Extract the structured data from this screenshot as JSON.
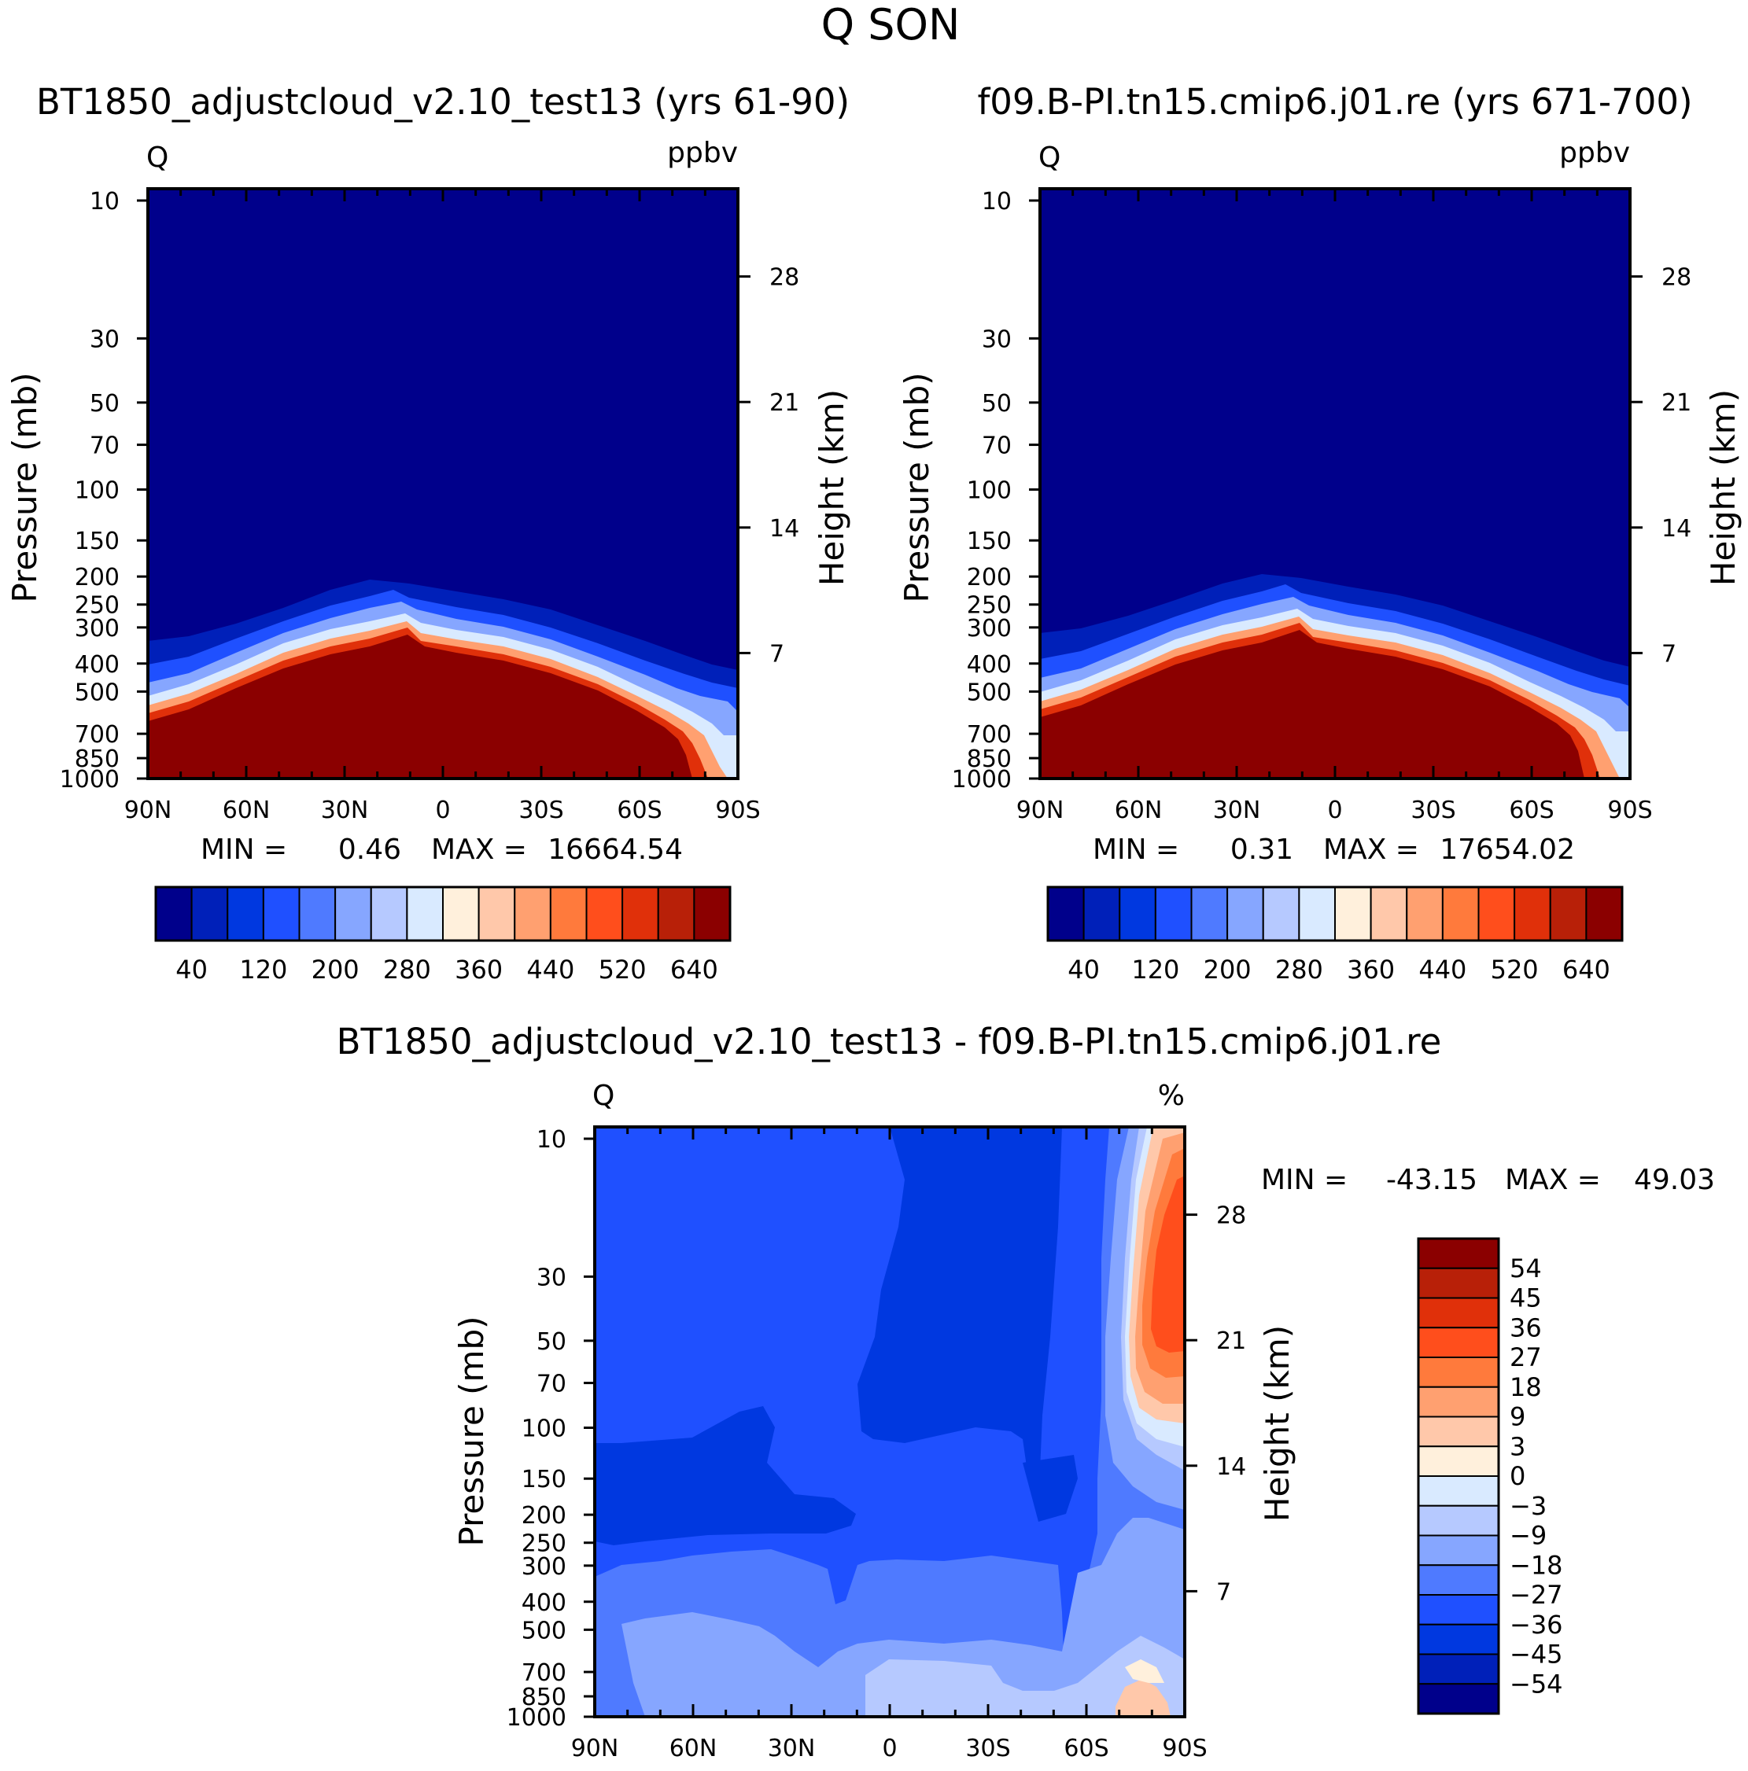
{
  "title": "Q SON",
  "colors": {
    "ppbv_levels": [
      "#00008b",
      "#0020b9",
      "#0038e0",
      "#1f50ff",
      "#4f7aff",
      "#86a6ff",
      "#b6c9ff",
      "#d9eaff",
      "#fff0dc",
      "#ffc8aa",
      "#ffa070",
      "#ff7a3c",
      "#ff4e1c",
      "#e0300a",
      "#b82008",
      "#8b0000"
    ],
    "pct_levels": [
      "#00008b",
      "#0020b9",
      "#0038e0",
      "#1f50ff",
      "#4f7aff",
      "#86a6ff",
      "#b6c9ff",
      "#d9eaff",
      "#fff0dc",
      "#ffc8aa",
      "#ffa070",
      "#ff7a3c",
      "#ff4e1c",
      "#e0300a",
      "#b82008",
      "#8b0000"
    ]
  },
  "panels": {
    "left": {
      "case": "BT1850_adjustcloud_v2.10_test13 (yrs 61-90)",
      "var": "Q",
      "units": "ppbv",
      "min_label": "MIN =",
      "min_val": "0.46",
      "max_label": "MAX =",
      "max_val": "16664.54"
    },
    "right": {
      "case": "f09.B-PI.tn15.cmip6.j01.re (yrs 671-700)",
      "var": "Q",
      "units": "ppbv",
      "min_label": "MIN =",
      "min_val": "0.31",
      "max_label": "MAX =",
      "max_val": "17654.02"
    },
    "diff": {
      "case": "BT1850_adjustcloud_v2.10_test13 - f09.B-PI.tn15.cmip6.j01.re",
      "var": "Q",
      "units": "%",
      "min_label": "MIN =",
      "min_val": "-43.15",
      "max_label": "MAX =",
      "max_val": "49.03"
    }
  },
  "axes": {
    "ylabel": "Pressure (mb)",
    "ylabel_right": "Height (km)",
    "pressure_ticks": [
      "10",
      "30",
      "50",
      "70",
      "100",
      "150",
      "200",
      "250",
      "300",
      "400",
      "500",
      "700",
      "850",
      "1000"
    ],
    "height_ticks": [
      "28",
      "21",
      "14",
      "7"
    ],
    "lat_ticks": [
      "90N",
      "60N",
      "30N",
      "0",
      "30S",
      "60S",
      "90S"
    ]
  },
  "colorbars": {
    "ppbv_labels": [
      "40",
      "120",
      "200",
      "280",
      "360",
      "440",
      "520",
      "640"
    ],
    "pct_labels": [
      "54",
      "45",
      "36",
      "27",
      "18",
      "9",
      "3",
      "0",
      "-3",
      "-9",
      "-18",
      "-27",
      "-36",
      "-45",
      "-54"
    ]
  },
  "chart_data": [
    {
      "type": "heatmap",
      "title": "BT1850_adjustcloud_v2.10_test13 (yrs 61-90)",
      "ylabel": "Pressure (mb)",
      "y2label": "Height (km)",
      "units": "ppbv",
      "x": [
        "90N",
        "60N",
        "30N",
        "0",
        "30S",
        "60S",
        "90S"
      ],
      "y_scale": "log",
      "ylim": [
        1000,
        10
      ],
      "levels": [
        40,
        80,
        120,
        160,
        200,
        240,
        280,
        320,
        360,
        400,
        440,
        480,
        520,
        560,
        640
      ],
      "min": 0.46,
      "max": 16664.54
    },
    {
      "type": "heatmap",
      "title": "f09.B-PI.tn15.cmip6.j01.re (yrs 671-700)",
      "ylabel": "Pressure (mb)",
      "y2label": "Height (km)",
      "units": "ppbv",
      "x": [
        "90N",
        "60N",
        "30N",
        "0",
        "30S",
        "60S",
        "90S"
      ],
      "y_scale": "log",
      "ylim": [
        1000,
        10
      ],
      "levels": [
        40,
        80,
        120,
        160,
        200,
        240,
        280,
        320,
        360,
        400,
        440,
        480,
        520,
        560,
        640
      ],
      "min": 0.31,
      "max": 17654.02
    },
    {
      "type": "heatmap",
      "title": "BT1850_adjustcloud_v2.10_test13 - f09.B-PI.tn15.cmip6.j01.re",
      "ylabel": "Pressure (mb)",
      "y2label": "Height (km)",
      "units": "%",
      "x": [
        "90N",
        "60N",
        "30N",
        "0",
        "30S",
        "60S",
        "90S"
      ],
      "y_scale": "log",
      "ylim": [
        1000,
        10
      ],
      "levels": [
        -54,
        -45,
        -36,
        -27,
        -18,
        -9,
        -3,
        0,
        3,
        9,
        18,
        27,
        36,
        45,
        54
      ],
      "min": -43.15,
      "max": 49.03
    }
  ]
}
